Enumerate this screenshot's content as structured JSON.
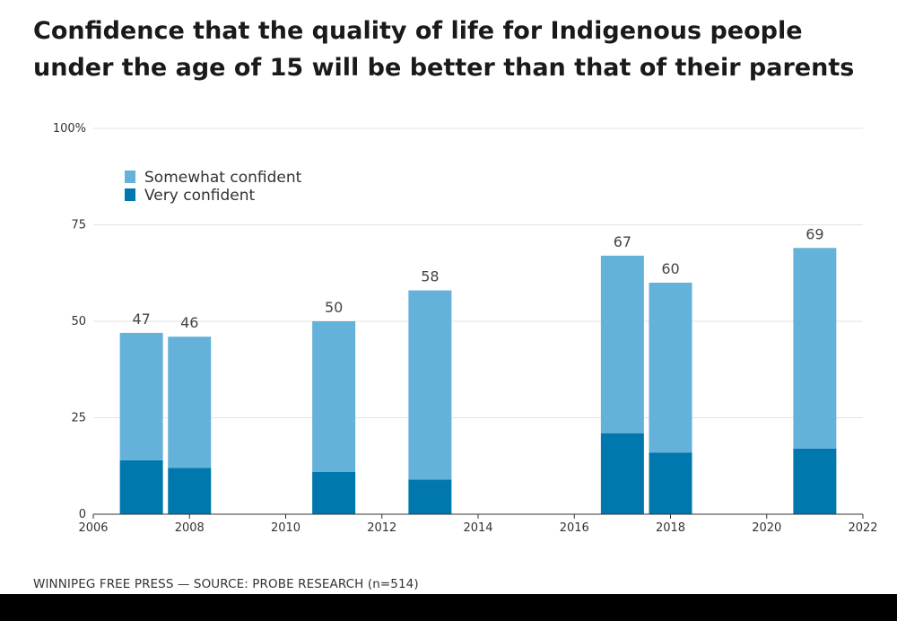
{
  "title": "Confidence that the quality of life for Indigenous people under the age of 15 will be better than that of their parents",
  "footer": "WINNIPEG FREE PRESS — SOURCE: PROBE RESEARCH (n=514)",
  "colors": {
    "somewhat": "#64b1da",
    "very": "#0078ad",
    "grid": "#e3e3e3",
    "axis": "#333333"
  },
  "chart_data": {
    "type": "bar",
    "stacked": true,
    "x": [
      2007,
      2008,
      2011,
      2013,
      2017,
      2018,
      2021
    ],
    "series": [
      {
        "name": "Very confident",
        "values": [
          14,
          12,
          11,
          9,
          21,
          16,
          17
        ]
      },
      {
        "name": "Somewhat confident",
        "values": [
          33,
          34,
          39,
          49,
          46,
          44,
          52
        ]
      }
    ],
    "totals": [
      47,
      46,
      50,
      58,
      67,
      60,
      69
    ],
    "xlim": [
      2006,
      2022
    ],
    "ylim": [
      0,
      100
    ],
    "xticks": [
      2006,
      2008,
      2010,
      2012,
      2014,
      2016,
      2018,
      2020,
      2022
    ],
    "yticks": [
      0,
      25,
      50,
      75,
      100
    ],
    "ytick_labels": [
      "0",
      "25",
      "50",
      "75",
      "100%"
    ],
    "legend": [
      "Somewhat confident",
      "Very confident"
    ],
    "legend_position": "top-left",
    "grid": true
  }
}
